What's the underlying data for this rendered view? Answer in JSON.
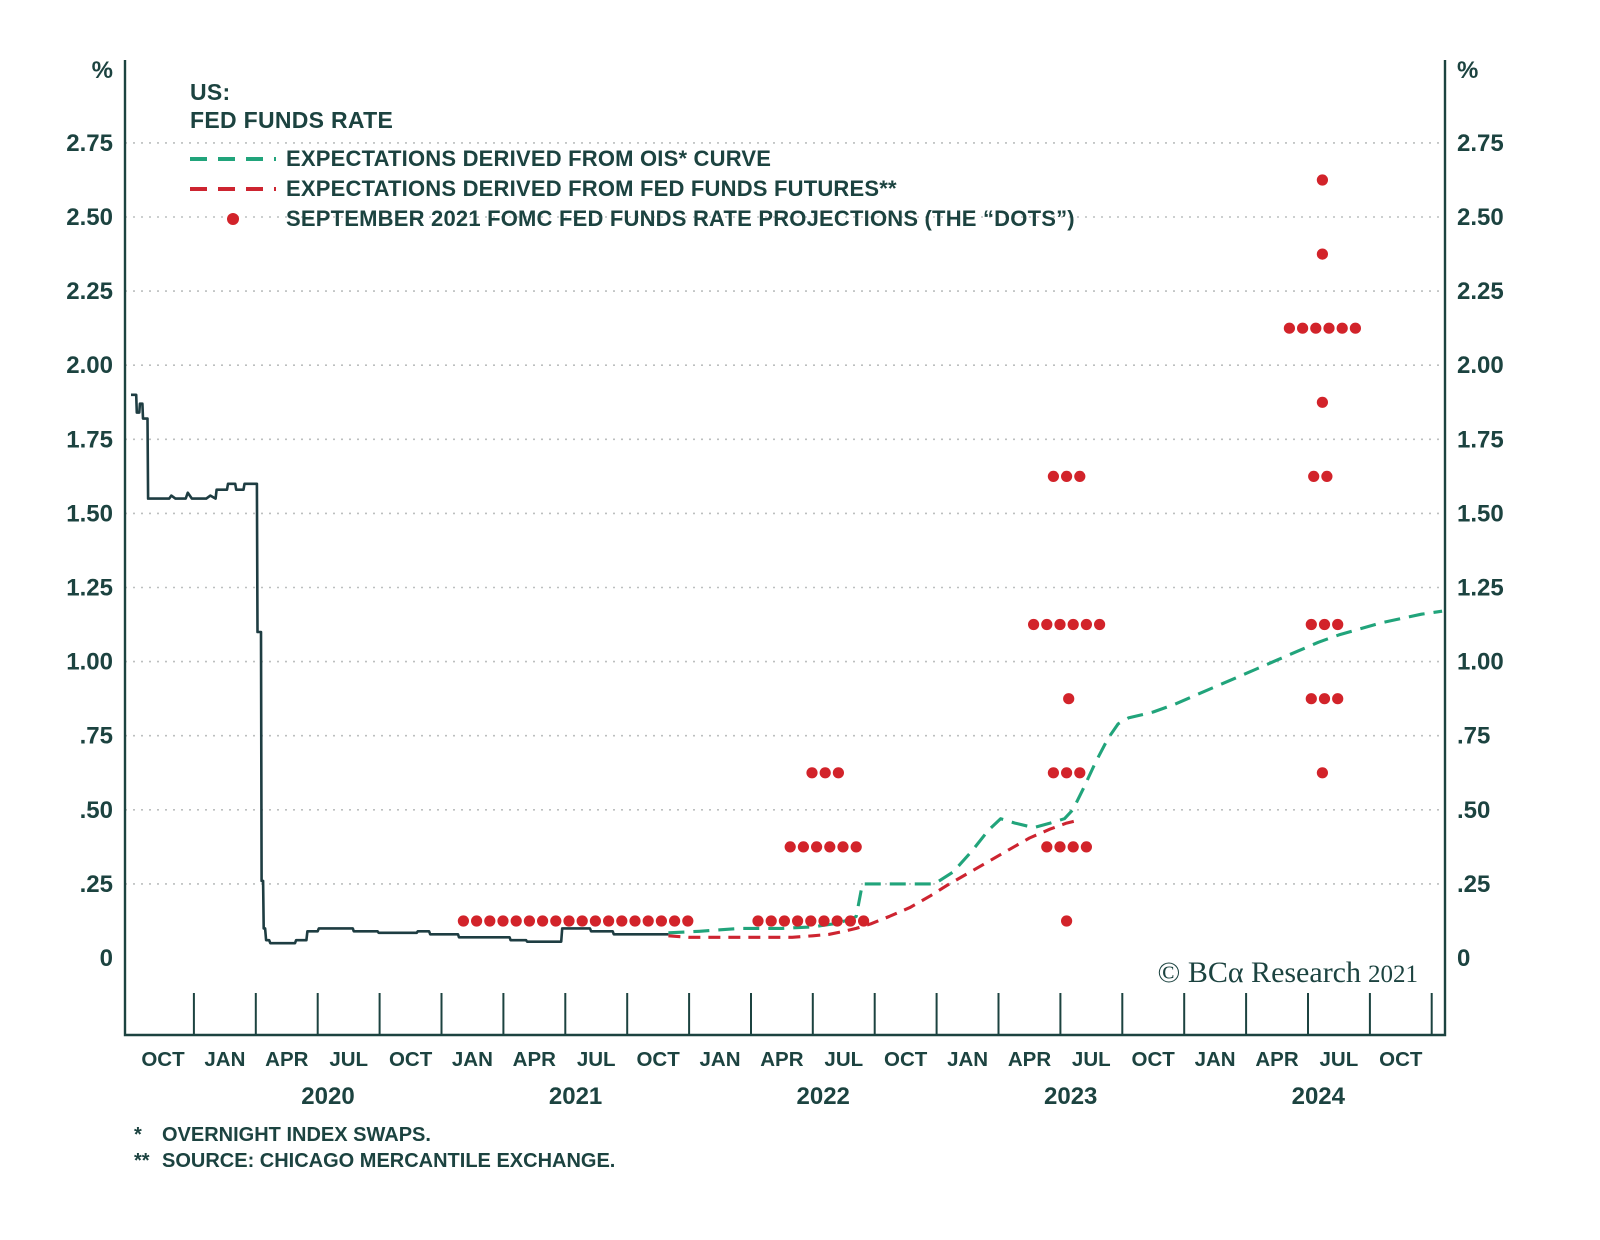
{
  "colors": {
    "ink": "#1c4340",
    "line_navy": "#1e3d42",
    "ois_green": "#21a47b",
    "futures_red": "#cd2430",
    "dots_red": "#d2232a",
    "grid": "#bcbfbf"
  },
  "legend": {
    "title_line1": "US:",
    "title_line2": "FED FUNDS RATE",
    "items": [
      {
        "label": "EXPECTATIONS DERIVED FROM OIS* CURVE",
        "style": "dashed",
        "color_key": "ois_green"
      },
      {
        "label": "EXPECTATIONS DERIVED FROM FED FUNDS FUTURES**",
        "style": "dashed",
        "color_key": "futures_red"
      },
      {
        "label": "SEPTEMBER 2021 FOMC FED FUNDS RATE PROJECTIONS (THE “DOTS”)",
        "style": "dot",
        "color_key": "dots_red"
      }
    ]
  },
  "copyright": {
    "brand": "© BCα Research",
    "year": "2021"
  },
  "footnotes": [
    {
      "marker": "*",
      "text": "OVERNIGHT INDEX SWAPS."
    },
    {
      "marker": "**",
      "text": "SOURCE: CHICAGO MERCANTILE EXCHANGE."
    }
  ],
  "chart_data": {
    "type": "line",
    "title": "US: FED FUNDS RATE",
    "unit": "%",
    "ylim": [
      0,
      2.75
    ],
    "grid": "dotted-horizontal",
    "x_unit": "months since Oct 2019",
    "y_ticks": [
      0,
      0.25,
      0.5,
      0.75,
      1.0,
      1.25,
      1.5,
      1.75,
      2.0,
      2.25,
      2.5,
      2.75
    ],
    "y_tick_labels": [
      "0",
      ".25",
      ".50",
      ".75",
      "1.00",
      "1.25",
      "1.50",
      "1.75",
      "2.00",
      "2.25",
      "2.50",
      "2.75"
    ],
    "x_month_ticks": {
      "start_m": 0,
      "step_m": 3,
      "labels": [
        "OCT",
        "JAN",
        "APR",
        "JUL",
        "OCT",
        "JAN",
        "APR",
        "JUL",
        "OCT",
        "JAN",
        "APR",
        "JUL",
        "OCT",
        "JAN",
        "APR",
        "JUL",
        "OCT",
        "JAN",
        "APR",
        "JUL",
        "OCT"
      ]
    },
    "x_year_labels": [
      {
        "label": "2020",
        "m": 8
      },
      {
        "label": "2021",
        "m": 20
      },
      {
        "label": "2022",
        "m": 32
      },
      {
        "label": "2023",
        "m": 44
      },
      {
        "label": "2024",
        "m": 56
      }
    ],
    "series": [
      {
        "name": "FED FUNDS RATE",
        "style": "solid",
        "color_key": "line_navy",
        "points": [
          [
            -1.55,
            1.9
          ],
          [
            -1.3,
            1.9
          ],
          [
            -1.27,
            1.84
          ],
          [
            -1.15,
            1.84
          ],
          [
            -1.12,
            1.87
          ],
          [
            -1.0,
            1.87
          ],
          [
            -0.97,
            1.82
          ],
          [
            -0.75,
            1.82
          ],
          [
            -0.72,
            1.55
          ],
          [
            0.3,
            1.55
          ],
          [
            0.4,
            1.56
          ],
          [
            0.6,
            1.55
          ],
          [
            1.1,
            1.55
          ],
          [
            1.2,
            1.57
          ],
          [
            1.4,
            1.55
          ],
          [
            2.1,
            1.55
          ],
          [
            2.3,
            1.56
          ],
          [
            2.55,
            1.55
          ],
          [
            2.6,
            1.58
          ],
          [
            3.1,
            1.58
          ],
          [
            3.15,
            1.6
          ],
          [
            3.5,
            1.6
          ],
          [
            3.55,
            1.58
          ],
          [
            3.9,
            1.58
          ],
          [
            3.95,
            1.6
          ],
          [
            4.55,
            1.6
          ],
          [
            4.58,
            1.1
          ],
          [
            4.75,
            1.1
          ],
          [
            4.78,
            0.26
          ],
          [
            4.85,
            0.26
          ],
          [
            4.88,
            0.1
          ],
          [
            4.95,
            0.1
          ],
          [
            5.0,
            0.06
          ],
          [
            5.15,
            0.06
          ],
          [
            5.2,
            0.05
          ],
          [
            6.4,
            0.05
          ],
          [
            6.45,
            0.06
          ],
          [
            6.95,
            0.06
          ],
          [
            7.0,
            0.09
          ],
          [
            7.5,
            0.09
          ],
          [
            7.55,
            0.1
          ],
          [
            9.2,
            0.1
          ],
          [
            9.25,
            0.09
          ],
          [
            10.4,
            0.09
          ],
          [
            10.45,
            0.085
          ],
          [
            12.3,
            0.085
          ],
          [
            12.35,
            0.09
          ],
          [
            12.9,
            0.09
          ],
          [
            12.95,
            0.08
          ],
          [
            14.3,
            0.08
          ],
          [
            14.35,
            0.07
          ],
          [
            16.8,
            0.07
          ],
          [
            16.85,
            0.06
          ],
          [
            17.6,
            0.06
          ],
          [
            17.65,
            0.055
          ],
          [
            19.3,
            0.055
          ],
          [
            19.35,
            0.1
          ],
          [
            20.7,
            0.1
          ],
          [
            20.75,
            0.09
          ],
          [
            21.8,
            0.09
          ],
          [
            21.85,
            0.08
          ],
          [
            24.5,
            0.08
          ]
        ]
      },
      {
        "name": "EXPECTATIONS DERIVED FROM OIS* CURVE",
        "style": "dashed",
        "color_key": "ois_green",
        "points": [
          [
            24.5,
            0.085
          ],
          [
            26,
            0.09
          ],
          [
            28,
            0.1
          ],
          [
            30,
            0.1
          ],
          [
            31.5,
            0.105
          ],
          [
            32.5,
            0.115
          ],
          [
            33.3,
            0.13
          ],
          [
            33.6,
            0.14
          ],
          [
            33.9,
            0.25
          ],
          [
            34.5,
            0.25
          ],
          [
            37.4,
            0.25
          ],
          [
            38.3,
            0.29
          ],
          [
            39.2,
            0.36
          ],
          [
            40.0,
            0.43
          ],
          [
            40.6,
            0.47
          ],
          [
            41.3,
            0.455
          ],
          [
            42.2,
            0.44
          ],
          [
            43.0,
            0.455
          ],
          [
            43.7,
            0.47
          ],
          [
            44.1,
            0.5
          ],
          [
            44.6,
            0.57
          ],
          [
            45.2,
            0.66
          ],
          [
            45.8,
            0.74
          ],
          [
            46.3,
            0.79
          ],
          [
            46.8,
            0.81
          ],
          [
            48,
            0.83
          ],
          [
            49,
            0.855
          ],
          [
            50,
            0.885
          ],
          [
            51,
            0.915
          ],
          [
            52,
            0.945
          ],
          [
            53,
            0.975
          ],
          [
            54,
            1.005
          ],
          [
            55,
            1.035
          ],
          [
            56,
            1.065
          ],
          [
            57,
            1.09
          ],
          [
            58,
            1.11
          ],
          [
            59,
            1.13
          ],
          [
            60,
            1.145
          ],
          [
            61,
            1.16
          ],
          [
            62,
            1.17
          ]
        ]
      },
      {
        "name": "EXPECTATIONS DERIVED FROM FED FUNDS FUTURES**",
        "style": "dashed",
        "color_key": "futures_red",
        "points": [
          [
            24.5,
            0.075
          ],
          [
            25.5,
            0.07
          ],
          [
            30.5,
            0.07
          ],
          [
            31.5,
            0.075
          ],
          [
            32.3,
            0.08
          ],
          [
            33.0,
            0.09
          ],
          [
            33.6,
            0.1
          ],
          [
            34.3,
            0.115
          ],
          [
            35.2,
            0.14
          ],
          [
            36.2,
            0.17
          ],
          [
            37.2,
            0.21
          ],
          [
            38.0,
            0.245
          ],
          [
            39.0,
            0.285
          ],
          [
            40.0,
            0.325
          ],
          [
            41.0,
            0.365
          ],
          [
            42.0,
            0.405
          ],
          [
            43.0,
            0.435
          ],
          [
            43.8,
            0.455
          ],
          [
            44.4,
            0.465
          ]
        ]
      }
    ],
    "fomc_dots": {
      "name": "SEPTEMBER 2021 FOMC FED FUNDS RATE PROJECTIONS (THE “DOTS”)",
      "color_key": "dots_red",
      "groups": [
        {
          "year": 2021,
          "value": 0.125,
          "count": 18,
          "center_m": 20.0
        },
        {
          "year": 2022,
          "value": 0.125,
          "count": 9,
          "center_m": 31.4
        },
        {
          "year": 2022,
          "value": 0.375,
          "count": 6,
          "center_m": 32.0
        },
        {
          "year": 2022,
          "value": 0.625,
          "count": 3,
          "center_m": 32.1
        },
        {
          "year": 2023,
          "value": 0.125,
          "count": 1,
          "center_m": 43.8
        },
        {
          "year": 2023,
          "value": 0.375,
          "count": 4,
          "center_m": 43.8
        },
        {
          "year": 2023,
          "value": 0.625,
          "count": 3,
          "center_m": 43.8
        },
        {
          "year": 2023,
          "value": 0.875,
          "count": 1,
          "center_m": 43.9
        },
        {
          "year": 2023,
          "value": 1.125,
          "count": 6,
          "center_m": 43.8
        },
        {
          "year": 2023,
          "value": 1.625,
          "count": 3,
          "center_m": 43.8
        },
        {
          "year": 2024,
          "value": 0.625,
          "count": 1,
          "center_m": 56.2
        },
        {
          "year": 2024,
          "value": 0.875,
          "count": 3,
          "center_m": 56.3
        },
        {
          "year": 2024,
          "value": 1.125,
          "count": 3,
          "center_m": 56.3
        },
        {
          "year": 2024,
          "value": 1.625,
          "count": 2,
          "center_m": 56.1
        },
        {
          "year": 2024,
          "value": 1.875,
          "count": 1,
          "center_m": 56.2
        },
        {
          "year": 2024,
          "value": 2.125,
          "count": 6,
          "center_m": 56.2
        },
        {
          "year": 2024,
          "value": 2.375,
          "count": 1,
          "center_m": 56.2
        },
        {
          "year": 2024,
          "value": 2.625,
          "count": 1,
          "center_m": 56.2
        }
      ]
    }
  }
}
